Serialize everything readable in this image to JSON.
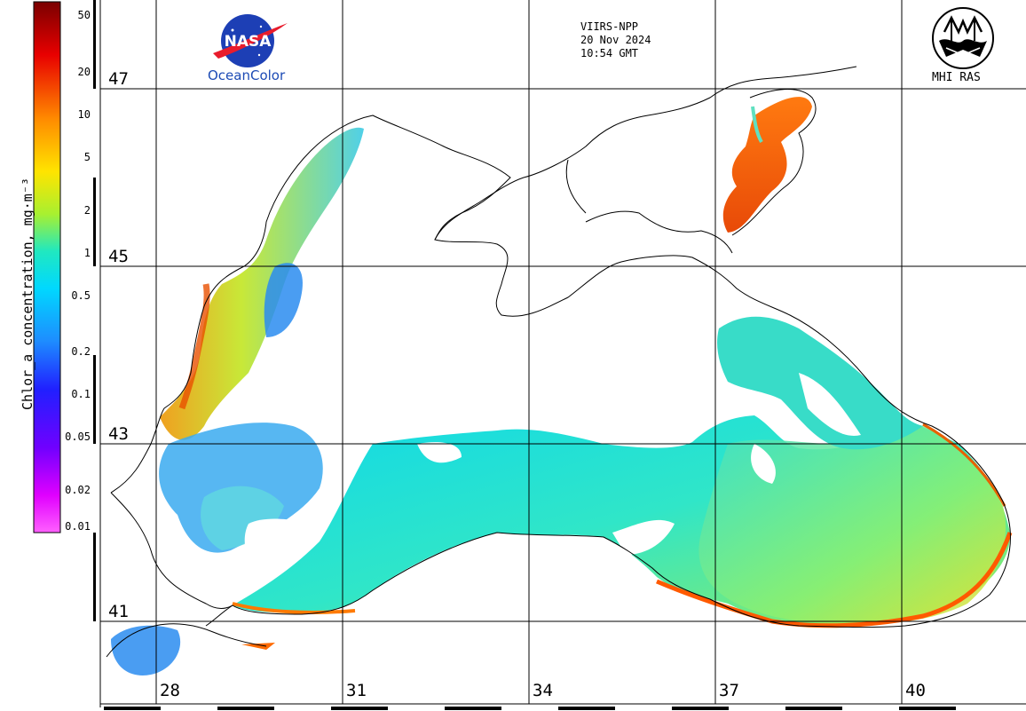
{
  "product": {
    "sensor": "VIIRS-NPP",
    "date": "20 Nov 2024",
    "time": "10:54 GMT"
  },
  "logos": {
    "nasa_wordmark": "NASA",
    "nasa_caption": "OceanColor",
    "mhi_caption": "MHI RAS"
  },
  "colorbar": {
    "title": "Chlor_a concentration, mg·m⁻³",
    "scale": "log",
    "range": [
      0.01,
      50
    ],
    "ticks": [
      "50",
      "20",
      "10",
      "5",
      "2",
      "1",
      "0.5",
      "0.2",
      "0.1",
      "0.05",
      "0.02",
      "0.01"
    ],
    "colors": [
      "#7a0000",
      "#e80000",
      "#ff8a00",
      "#ffe400",
      "#a8f030",
      "#20e8c0",
      "#00d8ff",
      "#1e8cff",
      "#2020ff",
      "#7000ff",
      "#e000ff",
      "#ff60ff"
    ]
  },
  "grid": {
    "latitudes": [
      "47",
      "45",
      "43",
      "41"
    ],
    "longitudes": [
      "28",
      "31",
      "34",
      "37",
      "40"
    ]
  },
  "map": {
    "land_color": "#ffffff",
    "coast_color": "#000000",
    "grid_color": "#000000"
  }
}
